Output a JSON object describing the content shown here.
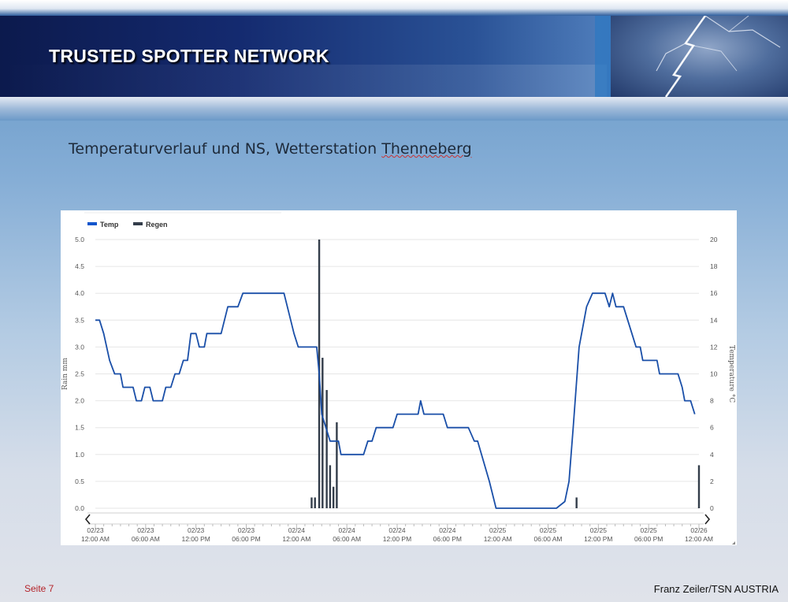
{
  "header": {
    "title": "TRUSTED  SPOTTER  NETWORK"
  },
  "slide": {
    "subtitle_pre": "Temperaturverlauf und NS, Wetterstation ",
    "subtitle_station": "Thenneberg"
  },
  "footer": {
    "page": "Seite 7",
    "author": "Franz Zeiler/TSN AUSTRIA"
  },
  "colors": {
    "temp": "#1a4fa8",
    "rain": "#333d4a",
    "grid": "#e6e6e6"
  },
  "icons": {
    "prev": "chevron-left-icon",
    "next": "chevron-right-icon"
  },
  "chart_data": {
    "type": "line",
    "legend": [
      {
        "name": "Temp",
        "color": "#1155cc"
      },
      {
        "name": "Regen",
        "color": "#333d4a"
      }
    ],
    "legend_position": "top-left",
    "ylabel_left": "Rain mm",
    "ylabel_right": "Temperature °C",
    "ylim_left": [
      0,
      5
    ],
    "ylim_right": [
      0,
      20
    ],
    "yticks_left": [
      "0.0",
      "0.5",
      "1.0",
      "1.5",
      "2.0",
      "2.5",
      "3.0",
      "3.5",
      "4.0",
      "4.5",
      "5.0"
    ],
    "yticks_right": [
      "0",
      "2",
      "4",
      "6",
      "8",
      "10",
      "12",
      "14",
      "16",
      "18",
      "20"
    ],
    "xlim_hours": [
      0,
      72
    ],
    "xticks": [
      {
        "h": 0,
        "date": "02/23",
        "time": "12:00 AM"
      },
      {
        "h": 6,
        "date": "02/23",
        "time": "06:00 AM"
      },
      {
        "h": 12,
        "date": "02/23",
        "time": "12:00 PM"
      },
      {
        "h": 18,
        "date": "02/23",
        "time": "06:00 PM"
      },
      {
        "h": 24,
        "date": "02/24",
        "time": "12:00 AM"
      },
      {
        "h": 30,
        "date": "02/24",
        "time": "06:00 AM"
      },
      {
        "h": 36,
        "date": "02/24",
        "time": "12:00 PM"
      },
      {
        "h": 42,
        "date": "02/24",
        "time": "06:00 PM"
      },
      {
        "h": 48,
        "date": "02/25",
        "time": "12:00 AM"
      },
      {
        "h": 54,
        "date": "02/25",
        "time": "06:00 AM"
      },
      {
        "h": 60,
        "date": "02/25",
        "time": "12:00 PM"
      },
      {
        "h": 66,
        "date": "02/25",
        "time": "06:00 PM"
      },
      {
        "h": 72,
        "date": "02/26",
        "time": "12:00 AM"
      }
    ],
    "grid": true,
    "series": [
      {
        "name": "Temp",
        "axis": "right",
        "points": [
          [
            0,
            14
          ],
          [
            0.5,
            14
          ],
          [
            1,
            13
          ],
          [
            1.7,
            11
          ],
          [
            2.3,
            10
          ],
          [
            3,
            10
          ],
          [
            3.3,
            9
          ],
          [
            4.5,
            9
          ],
          [
            4.9,
            8
          ],
          [
            5.5,
            8
          ],
          [
            5.9,
            9
          ],
          [
            6.5,
            9
          ],
          [
            6.9,
            8
          ],
          [
            8,
            8
          ],
          [
            8.4,
            9
          ],
          [
            9,
            9
          ],
          [
            9.5,
            10
          ],
          [
            10,
            10
          ],
          [
            10.5,
            11
          ],
          [
            11,
            11
          ],
          [
            11.4,
            13
          ],
          [
            12,
            13
          ],
          [
            12.4,
            12
          ],
          [
            13,
            12
          ],
          [
            13.3,
            13
          ],
          [
            15,
            13
          ],
          [
            15.8,
            15
          ],
          [
            17,
            15
          ],
          [
            17.6,
            16
          ],
          [
            22.5,
            16
          ],
          [
            23.3,
            14
          ],
          [
            23.7,
            13
          ],
          [
            24.2,
            12
          ],
          [
            26.4,
            12
          ],
          [
            26.7,
            10
          ],
          [
            27,
            7
          ],
          [
            27.5,
            6
          ],
          [
            28,
            5
          ],
          [
            29,
            5
          ],
          [
            29.3,
            4
          ],
          [
            32,
            4
          ],
          [
            32.5,
            5
          ],
          [
            33,
            5
          ],
          [
            33.5,
            6
          ],
          [
            35.5,
            6
          ],
          [
            36,
            7
          ],
          [
            38.5,
            7
          ],
          [
            38.8,
            8
          ],
          [
            39.2,
            7
          ],
          [
            41.5,
            7
          ],
          [
            42,
            6
          ],
          [
            44.5,
            6
          ],
          [
            45.2,
            5
          ],
          [
            45.6,
            5
          ],
          [
            47,
            2
          ],
          [
            47.8,
            0
          ],
          [
            49,
            0
          ],
          [
            55,
            0
          ],
          [
            56,
            0.5
          ],
          [
            56.5,
            2
          ],
          [
            57,
            6
          ],
          [
            57.7,
            12
          ],
          [
            58.6,
            15
          ],
          [
            59.3,
            16
          ],
          [
            60.8,
            16
          ],
          [
            61.3,
            15
          ],
          [
            61.7,
            16
          ],
          [
            62.1,
            15
          ],
          [
            63,
            15
          ],
          [
            63.5,
            14
          ],
          [
            64,
            13
          ],
          [
            64.5,
            12
          ],
          [
            65,
            12
          ],
          [
            65.3,
            11
          ],
          [
            67,
            11
          ],
          [
            67.3,
            10
          ],
          [
            69.5,
            10
          ],
          [
            70,
            9
          ],
          [
            70.3,
            8
          ],
          [
            71,
            8
          ],
          [
            71.5,
            7
          ]
        ]
      },
      {
        "name": "Regen",
        "axis": "left",
        "bars": [
          [
            25.8,
            0.2
          ],
          [
            26.2,
            0.2
          ],
          [
            26.7,
            5.0
          ],
          [
            27.1,
            2.8
          ],
          [
            27.6,
            2.2
          ],
          [
            28.0,
            0.8
          ],
          [
            28.4,
            0.4
          ],
          [
            28.8,
            1.6
          ],
          [
            57.4,
            0.2
          ],
          [
            72,
            0.8
          ]
        ]
      }
    ]
  }
}
